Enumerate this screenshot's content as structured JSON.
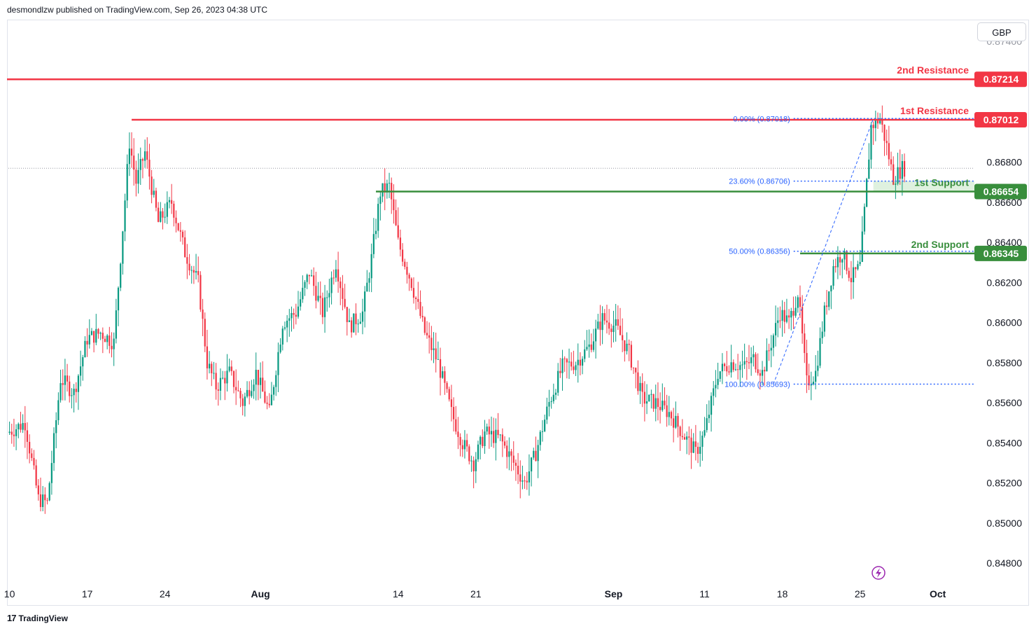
{
  "header": {
    "publisher_text": "desmondlzw published on TradingView.com, Sep 26, 2023 04:38 UTC"
  },
  "footer": {
    "logo_text": "TradingView",
    "logo_mark": "17"
  },
  "currency_button": {
    "label": "GBP"
  },
  "colors": {
    "up": "#089981",
    "down": "#f23645",
    "resistance": "#f23645",
    "support": "#388e3c",
    "fib": "#2962ff",
    "fib_label": "#2962ff",
    "axis_text": "#131722",
    "grid_dotted": "#9598a1"
  },
  "chart_data": {
    "type": "candlestick",
    "symbol_currency": "GBP",
    "ylim": [
      0.848,
      0.8747
    ],
    "y_ticks": [
      "0.84800",
      "0.85000",
      "0.85200",
      "0.85400",
      "0.85600",
      "0.85800",
      "0.86000",
      "0.86200",
      "0.86400",
      "0.86600",
      "0.86800"
    ],
    "y_tick_values": [
      0.848,
      0.85,
      0.852,
      0.854,
      0.856,
      0.858,
      0.86,
      0.862,
      0.864,
      0.866,
      0.868
    ],
    "top_partial_tick": "0.87400",
    "x_ticks": [
      {
        "label": "10",
        "bar": 0
      },
      {
        "label": "17",
        "bar": 35
      },
      {
        "label": "24",
        "bar": 70
      },
      {
        "label": "Aug",
        "bar": 113
      },
      {
        "label": "14",
        "bar": 175
      },
      {
        "label": "21",
        "bar": 210
      },
      {
        "label": "Sep",
        "bar": 272
      },
      {
        "label": "11",
        "bar": 313
      },
      {
        "label": "18",
        "bar": 348
      },
      {
        "label": "25",
        "bar": 383
      },
      {
        "label": "Oct",
        "bar": 418
      }
    ],
    "total_bars": 435,
    "last_price": 0.8677,
    "levels": [
      {
        "name": "2nd Resistance",
        "label": "2nd Resistance",
        "price": 0.87214,
        "price_label": "0.87214",
        "kind": "resistance",
        "from_bar": 0
      },
      {
        "name": "1st Resistance",
        "label": "1st Resistance",
        "price": 0.87012,
        "price_label": "0.87012",
        "kind": "resistance",
        "from_bar": 55
      },
      {
        "name": "1st Support",
        "label": "1st Support",
        "price": 0.86654,
        "price_label": "0.86654",
        "kind": "support",
        "from_bar": 165
      },
      {
        "name": "2nd Support",
        "label": "2nd Support",
        "price": 0.86345,
        "price_label": "0.86345",
        "kind": "support",
        "from_bar": 356
      }
    ],
    "fib_levels": [
      {
        "ratio": "0.00%",
        "price": 0.87018,
        "label": "0.00% (0.87018)",
        "from_bar": 320
      },
      {
        "ratio": "23.60%",
        "price": 0.86706,
        "label": "23.60% (0.86706)",
        "from_bar": 320
      },
      {
        "ratio": "50.00%",
        "price": 0.86356,
        "label": "50.00% (0.86356)",
        "from_bar": 320
      },
      {
        "ratio": "100.00%",
        "price": 0.85693,
        "label": "100.00% (0.85693)",
        "from_bar": 320
      }
    ],
    "fib_trend": {
      "from_bar": 344,
      "from_price": 0.85693,
      "to_bar": 389,
      "to_price": 0.87018
    },
    "path": [
      [
        0,
        0.8545
      ],
      [
        8,
        0.855
      ],
      [
        14,
        0.8512
      ],
      [
        18,
        0.851
      ],
      [
        24,
        0.8572
      ],
      [
        30,
        0.8565
      ],
      [
        36,
        0.8592
      ],
      [
        42,
        0.8595
      ],
      [
        48,
        0.859
      ],
      [
        55,
        0.869
      ],
      [
        58,
        0.867
      ],
      [
        62,
        0.8685
      ],
      [
        68,
        0.865
      ],
      [
        74,
        0.866
      ],
      [
        80,
        0.8635
      ],
      [
        86,
        0.862
      ],
      [
        90,
        0.858
      ],
      [
        94,
        0.8568
      ],
      [
        100,
        0.8575
      ],
      [
        106,
        0.856
      ],
      [
        112,
        0.8575
      ],
      [
        118,
        0.8555
      ],
      [
        124,
        0.86
      ],
      [
        130,
        0.8605
      ],
      [
        136,
        0.8625
      ],
      [
        142,
        0.8605
      ],
      [
        148,
        0.863
      ],
      [
        154,
        0.8598
      ],
      [
        160,
        0.8605
      ],
      [
        164,
        0.8632
      ],
      [
        168,
        0.8665
      ],
      [
        172,
        0.8668
      ],
      [
        176,
        0.864
      ],
      [
        182,
        0.862
      ],
      [
        188,
        0.8595
      ],
      [
        194,
        0.858
      ],
      [
        200,
        0.8555
      ],
      [
        205,
        0.854
      ],
      [
        210,
        0.853
      ],
      [
        215,
        0.8545
      ],
      [
        222,
        0.8542
      ],
      [
        228,
        0.853
      ],
      [
        233,
        0.852
      ],
      [
        238,
        0.8535
      ],
      [
        244,
        0.856
      ],
      [
        250,
        0.8578
      ],
      [
        256,
        0.858
      ],
      [
        262,
        0.8588
      ],
      [
        268,
        0.8602
      ],
      [
        274,
        0.8598
      ],
      [
        280,
        0.8585
      ],
      [
        286,
        0.8562
      ],
      [
        292,
        0.856
      ],
      [
        298,
        0.8555
      ],
      [
        304,
        0.8545
      ],
      [
        310,
        0.8535
      ],
      [
        314,
        0.8545
      ],
      [
        320,
        0.8575
      ],
      [
        326,
        0.858
      ],
      [
        332,
        0.8578
      ],
      [
        336,
        0.8582
      ],
      [
        340,
        0.8575
      ],
      [
        344,
        0.859
      ],
      [
        348,
        0.8605
      ],
      [
        352,
        0.86
      ],
      [
        356,
        0.8615
      ],
      [
        360,
        0.857
      ],
      [
        364,
        0.8575
      ],
      [
        368,
        0.8605
      ],
      [
        372,
        0.8628
      ],
      [
        376,
        0.8635
      ],
      [
        380,
        0.8622
      ],
      [
        384,
        0.8628
      ],
      [
        386,
        0.8655
      ],
      [
        389,
        0.8698
      ],
      [
        393,
        0.8702
      ],
      [
        396,
        0.8688
      ],
      [
        399,
        0.8672
      ],
      [
        403,
        0.8677
      ]
    ],
    "seed": 7
  }
}
